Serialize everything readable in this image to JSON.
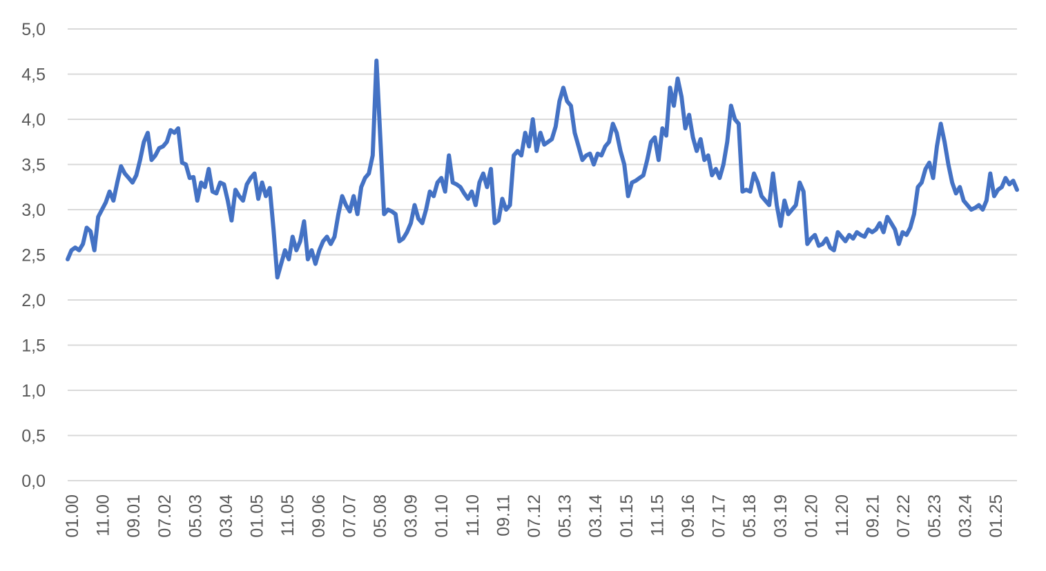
{
  "chart_data": {
    "type": "line",
    "title": "",
    "xlabel": "",
    "ylabel": "",
    "ylim": [
      0,
      5
    ],
    "y_ticks": [
      "0,0",
      "0,5",
      "1,0",
      "1,5",
      "2,0",
      "2,5",
      "3,0",
      "3,5",
      "4,0",
      "4,5",
      "5,0"
    ],
    "x_ticks": [
      "01.00",
      "11.00",
      "09.01",
      "07.02",
      "05.03",
      "03.04",
      "01.05",
      "11.05",
      "09.06",
      "07.07",
      "05.08",
      "03.09",
      "01.10",
      "11.10",
      "09.11",
      "07.12",
      "05.13",
      "03.14",
      "01.15",
      "11.15",
      "09.16",
      "07.17",
      "05.18",
      "03.19",
      "01.20",
      "11.20",
      "09.21",
      "07.22",
      "05.23",
      "03.24",
      "01.25"
    ],
    "grid": true,
    "legend": "none",
    "line_color": "#4472c4",
    "series": [
      {
        "values": [
          2.45,
          2.55,
          2.58,
          2.55,
          2.62,
          2.8,
          2.76,
          2.55,
          2.92,
          3.0,
          3.08,
          3.2,
          3.1,
          3.3,
          3.48,
          3.4,
          3.35,
          3.3,
          3.38,
          3.55,
          3.75,
          3.85,
          3.55,
          3.6,
          3.68,
          3.7,
          3.75,
          3.88,
          3.85,
          3.9,
          3.52,
          3.5,
          3.35,
          3.36,
          3.1,
          3.3,
          3.25,
          3.45,
          3.2,
          3.18,
          3.3,
          3.28,
          3.1,
          2.88,
          3.22,
          3.15,
          3.1,
          3.28,
          3.35,
          3.4,
          3.12,
          3.3,
          3.15,
          3.24,
          2.78,
          2.25,
          2.4,
          2.55,
          2.45,
          2.7,
          2.55,
          2.65,
          2.87,
          2.45,
          2.55,
          2.4,
          2.55,
          2.65,
          2.7,
          2.62,
          2.7,
          2.95,
          3.15,
          3.05,
          2.98,
          3.15,
          2.95,
          3.25,
          3.35,
          3.4,
          3.6,
          4.65,
          3.8,
          2.95,
          3.0,
          2.98,
          2.95,
          2.65,
          2.68,
          2.75,
          2.85,
          3.05,
          2.9,
          2.85,
          3.0,
          3.2,
          3.15,
          3.3,
          3.35,
          3.2,
          3.6,
          3.3,
          3.28,
          3.25,
          3.18,
          3.12,
          3.2,
          3.05,
          3.3,
          3.4,
          3.25,
          3.45,
          2.85,
          2.88,
          3.12,
          3.0,
          3.05,
          3.6,
          3.65,
          3.6,
          3.85,
          3.7,
          4.0,
          3.65,
          3.85,
          3.72,
          3.75,
          3.78,
          3.92,
          4.2,
          4.35,
          4.2,
          4.15,
          3.85,
          3.7,
          3.55,
          3.6,
          3.62,
          3.5,
          3.62,
          3.6,
          3.7,
          3.75,
          3.95,
          3.85,
          3.65,
          3.5,
          3.15,
          3.3,
          3.32,
          3.35,
          3.38,
          3.55,
          3.75,
          3.8,
          3.55,
          3.9,
          3.82,
          4.35,
          4.15,
          4.45,
          4.25,
          3.9,
          4.05,
          3.8,
          3.65,
          3.78,
          3.55,
          3.6,
          3.38,
          3.45,
          3.35,
          3.5,
          3.75,
          4.15,
          4.0,
          3.95,
          3.2,
          3.22,
          3.2,
          3.4,
          3.3,
          3.15,
          3.1,
          3.05,
          3.4,
          3.05,
          2.82,
          3.1,
          2.95,
          3.0,
          3.05,
          3.3,
          3.2,
          2.62,
          2.68,
          2.72,
          2.6,
          2.62,
          2.68,
          2.58,
          2.55,
          2.75,
          2.7,
          2.65,
          2.72,
          2.68,
          2.75,
          2.72,
          2.7,
          2.78,
          2.75,
          2.78,
          2.85,
          2.75,
          2.92,
          2.85,
          2.78,
          2.62,
          2.75,
          2.72,
          2.8,
          2.95,
          3.25,
          3.3,
          3.45,
          3.52,
          3.35,
          3.7,
          3.95,
          3.75,
          3.5,
          3.3,
          3.18,
          3.25,
          3.1,
          3.05,
          3.0,
          3.02,
          3.05,
          3.0,
          3.1,
          3.4,
          3.15,
          3.22,
          3.25,
          3.35,
          3.28,
          3.32,
          3.22
        ]
      }
    ]
  }
}
